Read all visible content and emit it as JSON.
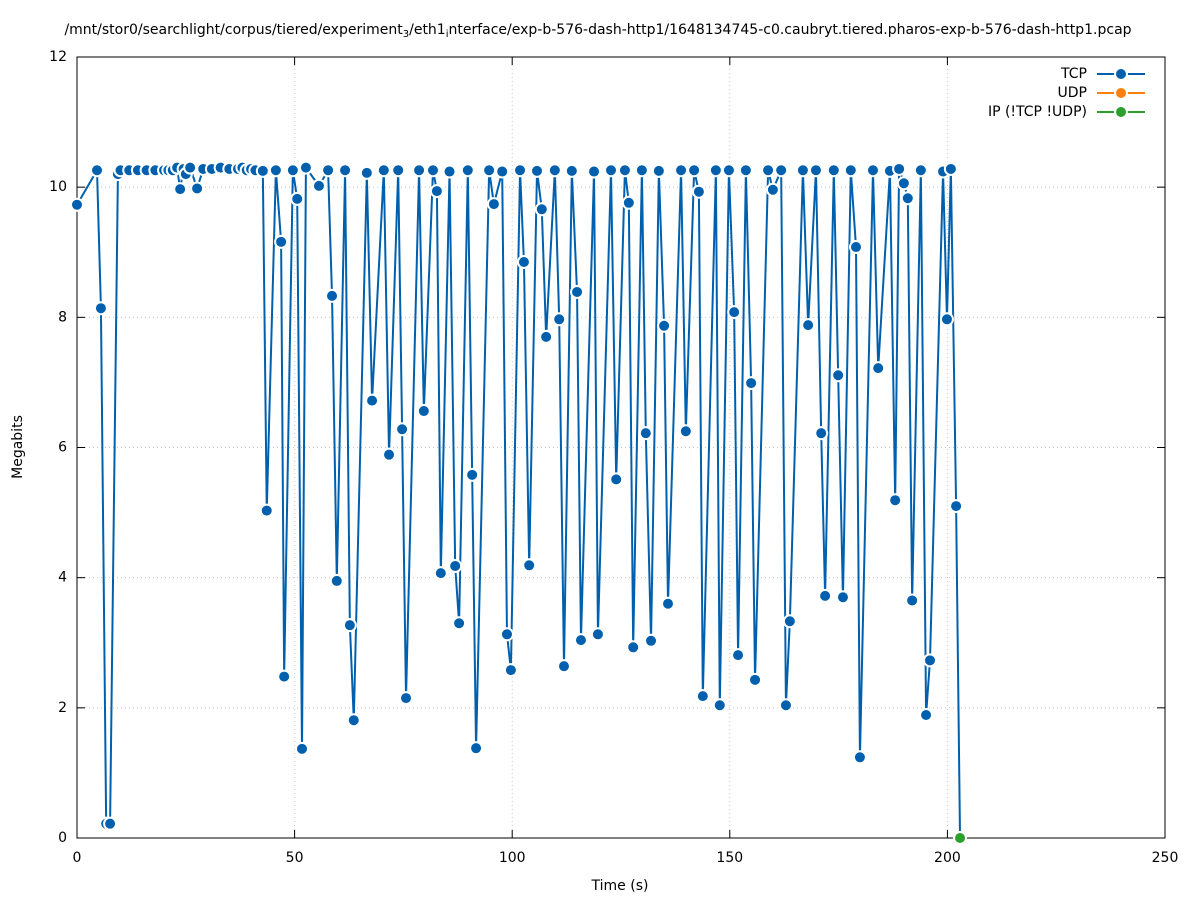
{
  "chart_data": {
    "type": "line",
    "title_parts": [
      "/mnt/stor0/searchlight/corpus/tiered/experiment",
      "3",
      "/eth1",
      "i",
      "nterface/exp-b-576-dash-http1/1648134745-c0.caubryt.tiered.pharos-exp-b-576-dash-http1.pcap"
    ],
    "x_label": "Time (s)",
    "y_label": "Megabits",
    "xlim": [
      0,
      250
    ],
    "xticks": [
      0,
      50,
      100,
      150,
      200,
      250
    ],
    "ylim": [
      0,
      12
    ],
    "yticks": [
      0,
      2,
      4,
      6,
      8,
      10,
      12
    ],
    "grid": true,
    "legend": "top-right",
    "series": [
      {
        "name": "TCP",
        "color": "#0060ad",
        "x": [
          0,
          4.6,
          5.5,
          6.7,
          7.6,
          9.4,
          10,
          12,
          14,
          16,
          18,
          20,
          21,
          22,
          23,
          23.7,
          24.5,
          25,
          26,
          27.6,
          29,
          31,
          33,
          35,
          37,
          38,
          39,
          40,
          41,
          42.7,
          43.6,
          45.7,
          46.9,
          47.6,
          49.6,
          50.6,
          51.7,
          52.6,
          55.6,
          57.7,
          58.6,
          59.7,
          61.6,
          62.7,
          63.6,
          66.6,
          67.8,
          70.5,
          71.7,
          73.8,
          74.7,
          75.6,
          78.6,
          79.7,
          81.8,
          82.7,
          83.6,
          85.6,
          86.9,
          87.8,
          89.8,
          90.8,
          91.7,
          94.7,
          95.8,
          97.7,
          98.8,
          99.7,
          101.8,
          102.7,
          103.9,
          105.7,
          106.8,
          107.8,
          109.8,
          110.8,
          111.9,
          113.7,
          114.9,
          115.8,
          118.8,
          119.7,
          122.7,
          123.9,
          125.9,
          126.8,
          127.8,
          129.8,
          130.7,
          131.9,
          133.7,
          134.9,
          135.8,
          138.8,
          139.9,
          141.8,
          142.9,
          143.8,
          146.8,
          147.7,
          149.8,
          151.0,
          151.9,
          153.7,
          154.9,
          155.8,
          158.8,
          159.9,
          161.8,
          162.9,
          163.8,
          166.8,
          168.0,
          169.8,
          171.0,
          171.9,
          173.9,
          174.9,
          176.0,
          177.8,
          179.0,
          179.9,
          182.9,
          184.1,
          186.8,
          188.0,
          188.9,
          190.0,
          190.9,
          191.9,
          193.9,
          195.1,
          196.0,
          199.0,
          199.9,
          200.8,
          202.0,
          202.9
        ],
        "values": [
          9.73,
          10.26,
          8.14,
          0.22,
          0.22,
          10.2,
          10.26,
          10.26,
          10.26,
          10.26,
          10.26,
          10.26,
          10.26,
          10.26,
          10.3,
          9.97,
          10.28,
          10.2,
          10.3,
          9.98,
          10.28,
          10.28,
          10.3,
          10.28,
          10.28,
          10.3,
          10.26,
          10.28,
          10.26,
          10.25,
          5.03,
          10.26,
          9.16,
          2.48,
          10.26,
          9.82,
          1.37,
          10.3,
          10.02,
          10.26,
          8.33,
          3.95,
          10.26,
          3.27,
          1.81,
          10.22,
          6.72,
          10.26,
          5.89,
          10.26,
          6.28,
          2.15,
          10.26,
          6.56,
          10.26,
          9.94,
          4.07,
          10.24,
          4.18,
          3.3,
          10.26,
          5.58,
          1.38,
          10.26,
          9.74,
          10.24,
          3.13,
          2.58,
          10.26,
          8.85,
          4.19,
          10.25,
          9.66,
          7.7,
          10.26,
          7.97,
          2.64,
          10.25,
          8.39,
          3.04,
          10.24,
          3.13,
          10.26,
          5.51,
          10.26,
          9.76,
          2.93,
          10.26,
          6.22,
          3.03,
          10.25,
          7.87,
          3.6,
          10.26,
          6.25,
          10.26,
          9.93,
          2.18,
          10.26,
          2.04,
          10.26,
          8.08,
          2.81,
          10.26,
          6.99,
          2.43,
          10.26,
          9.96,
          10.26,
          2.04,
          3.33,
          10.26,
          7.88,
          10.26,
          6.22,
          3.72,
          10.26,
          7.11,
          3.7,
          10.26,
          9.08,
          1.24,
          10.26,
          7.22,
          10.25,
          5.19,
          10.28,
          10.06,
          9.83,
          3.65,
          10.26,
          1.89,
          2.73,
          10.24,
          7.97,
          10.28,
          5.1,
          0
        ]
      },
      {
        "name": "UDP",
        "color": "#ff7f0e",
        "x": [],
        "values": []
      },
      {
        "name": "IP (!TCP  !UDP)",
        "color": "#2ca02c",
        "x": [
          202.9
        ],
        "values": [
          0
        ]
      }
    ]
  }
}
